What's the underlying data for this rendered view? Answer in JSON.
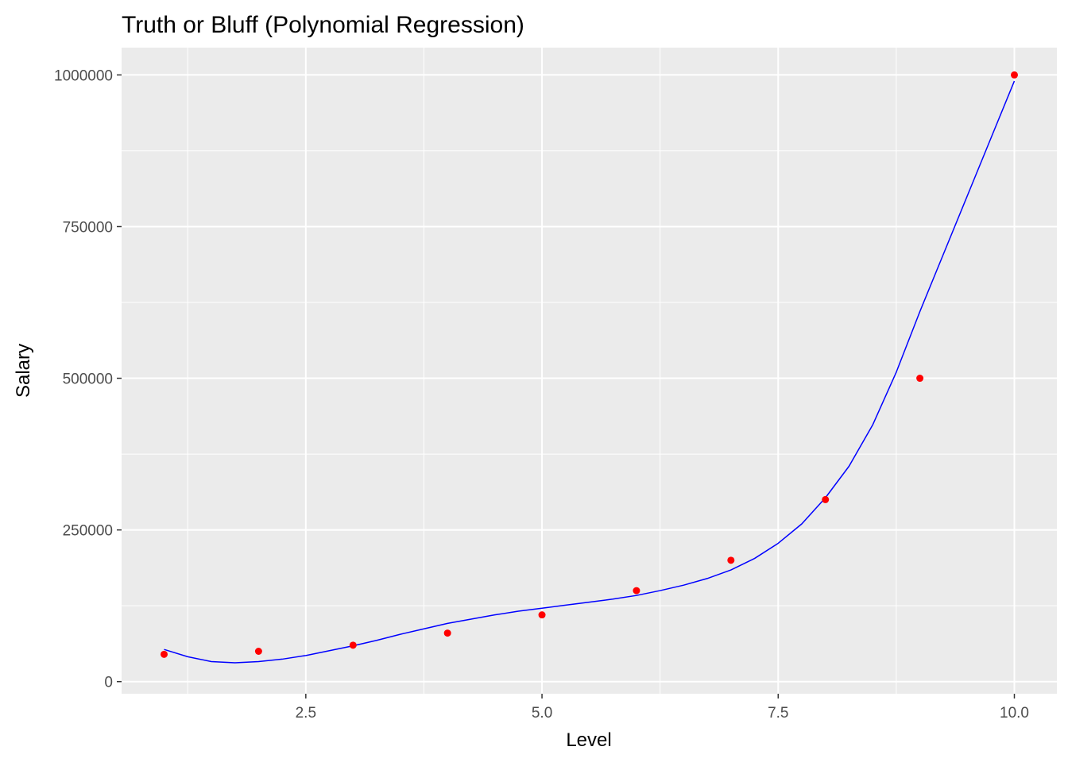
{
  "chart_data": {
    "type": "scatter",
    "title": "Truth or Bluff (Polynomial Regression)",
    "xlabel": "Level",
    "ylabel": "Salary",
    "xlim": [
      0.55,
      10.45
    ],
    "ylim": [
      -20000,
      1045000
    ],
    "x_ticks": [
      2.5,
      5.0,
      7.5,
      10.0
    ],
    "x_tick_labels": [
      "2.5",
      "5.0",
      "7.5",
      "10.0"
    ],
    "y_ticks": [
      0,
      250000,
      500000,
      750000,
      1000000
    ],
    "y_tick_labels": [
      "0",
      "250000",
      "500000",
      "750000",
      "1000000"
    ],
    "grid": true,
    "background_color": "#EBEBEB",
    "grid_color": "#FFFFFF",
    "series": [
      {
        "kind": "points",
        "color": "#FF0000",
        "x": [
          1,
          2,
          3,
          4,
          5,
          6,
          7,
          8,
          9,
          10
        ],
        "y": [
          45000,
          50000,
          60000,
          80000,
          110000,
          150000,
          200000,
          300000,
          500000,
          1000000
        ]
      },
      {
        "kind": "line",
        "color": "#0000FF",
        "x": [
          1.0,
          1.25,
          1.5,
          1.75,
          2.0,
          2.25,
          2.5,
          2.75,
          3.0,
          3.25,
          3.5,
          3.75,
          4.0,
          4.25,
          4.5,
          4.75,
          5.0,
          5.25,
          5.5,
          5.75,
          6.0,
          6.25,
          6.5,
          6.75,
          7.0,
          7.25,
          7.5,
          7.75,
          8.0,
          8.25,
          8.5,
          8.75,
          9.0,
          9.25,
          9.5,
          9.75,
          10.0
        ],
        "y": [
          53000,
          41000,
          33000,
          31000,
          33000,
          37000,
          43000,
          51000,
          59000,
          68000,
          78000,
          87000,
          96000,
          103000,
          110000,
          116000,
          121000,
          126000,
          131000,
          136000,
          142000,
          150000,
          159000,
          170000,
          184000,
          203000,
          228000,
          260000,
          303000,
          355000,
          423000,
          510000,
          610000,
          705000,
          800000,
          895000,
          990000
        ]
      }
    ]
  }
}
